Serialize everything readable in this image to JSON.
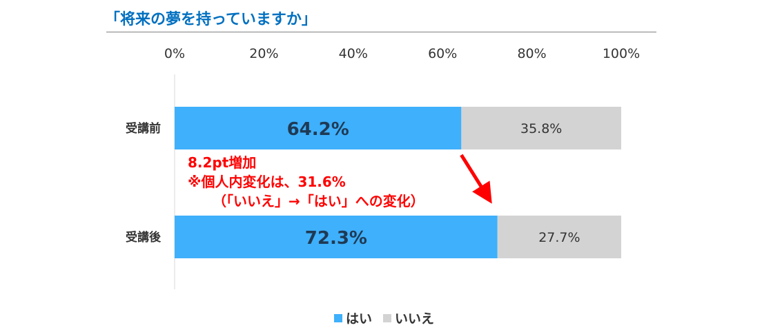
{
  "chart_data": {
    "type": "bar",
    "orientation": "horizontal",
    "stacked": true,
    "title": "「将来の夢を持っていますか」",
    "categories": [
      "受講前",
      "受講後"
    ],
    "series": [
      {
        "name": "はい",
        "color": "#3fb0fb",
        "values": [
          64.2,
          72.3
        ],
        "labels": [
          "64.2%",
          "72.3%"
        ]
      },
      {
        "name": "いいえ",
        "color": "#d3d3d3",
        "values": [
          35.8,
          27.7
        ],
        "labels": [
          "35.8%",
          "27.7%"
        ]
      }
    ],
    "xlim": [
      0,
      100
    ],
    "xticks": [
      "0%",
      "20%",
      "40%",
      "60%",
      "80%",
      "100%"
    ],
    "legend_position": "bottom",
    "annotation": {
      "lines": [
        "8.2pt増加",
        "※個人内変化は、31.6%",
        "（「いいえ」→「はい」への変化）"
      ],
      "color": "#ff0000"
    },
    "arrow_color": "#ff0000"
  }
}
